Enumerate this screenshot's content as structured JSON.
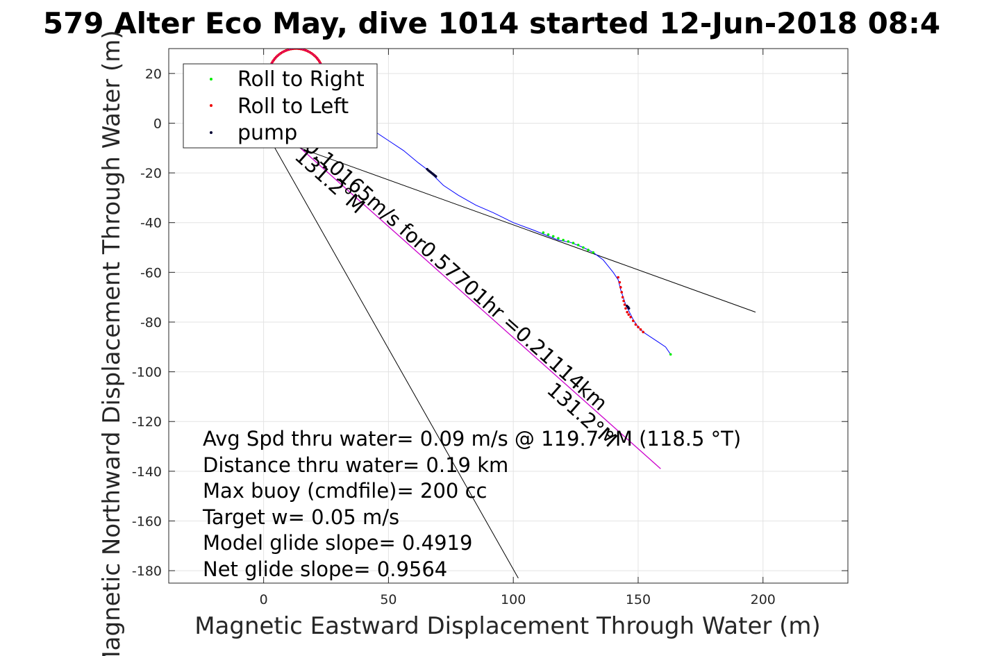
{
  "chart_data": {
    "type": "line",
    "title": "579 Alter Eco May, dive 1014 started 12-Jun-2018 08:4",
    "xlabel": "Magnetic Eastward Displacement Through Water (m)",
    "ylabel": "Magnetic Northward Displacement Through Water (m)",
    "xlim": [
      -38,
      234
    ],
    "ylim": [
      -185,
      30
    ],
    "xticks": [
      0,
      50,
      100,
      150,
      200
    ],
    "yticks": [
      20,
      0,
      -20,
      -40,
      -60,
      -80,
      -100,
      -120,
      -140,
      -160,
      -180
    ],
    "grid": true,
    "legend_position": "top-left",
    "legend": [
      "Roll to Right",
      "Roll to Left",
      "pump"
    ],
    "colors": {
      "track": "#0000ff",
      "roll_right": "#00ee00",
      "roll_left": "#ee0000",
      "pump": "#000033",
      "current_line": "#cc00cc",
      "reference_lines": "#000000"
    },
    "series": [
      {
        "role": "track",
        "x": [
          3,
          10,
          18,
          25,
          32,
          38,
          44,
          50,
          56,
          62,
          66,
          68,
          72,
          78,
          85,
          92,
          100,
          108,
          113,
          118,
          123,
          128,
          132,
          136,
          140,
          142,
          143,
          144,
          145,
          146,
          147,
          148,
          150,
          152,
          155,
          158,
          161,
          163
        ],
        "y": [
          15,
          12,
          10,
          7,
          4,
          1,
          -3,
          -7,
          -11,
          -16,
          -19,
          -21,
          -25,
          -29,
          -33,
          -36,
          -40,
          -43,
          -45,
          -47,
          -48,
          -50,
          -52,
          -55,
          -60,
          -63,
          -67,
          -70,
          -73,
          -75,
          -77,
          -79,
          -82,
          -84,
          -86,
          -88,
          -90,
          -93
        ]
      },
      {
        "name": "Roll to Right",
        "x": [
          112,
          114,
          116,
          118,
          120,
          122,
          124,
          126,
          128,
          130,
          132,
          163
        ],
        "y": [
          -44,
          -44.8,
          -45.5,
          -46.3,
          -47,
          -47.6,
          -48.2,
          -49,
          -50,
          -51,
          -52,
          -93
        ]
      },
      {
        "name": "Roll to Left",
        "arc_center": [
          13,
          19
        ],
        "arc_radius": 11,
        "arc_span_deg": [
          20,
          160
        ],
        "x": [
          142,
          142.6,
          143,
          143.4,
          143.8,
          144.2,
          144.6,
          145,
          145.6,
          146.2,
          147,
          148,
          149,
          150,
          151,
          152
        ],
        "y": [
          -62,
          -64,
          -66,
          -68,
          -70,
          -71.5,
          -73,
          -74.5,
          -76,
          -77,
          -78,
          -79.5,
          -81,
          -82,
          -83,
          -84
        ]
      },
      {
        "name": "pump",
        "x": [
          65.5,
          66,
          66.5,
          67,
          67.5,
          68,
          68.5,
          69,
          145.5,
          146,
          146.3
        ],
        "y": [
          -18.5,
          -19,
          -19.4,
          -19.8,
          -20.2,
          -20.6,
          -21,
          -21.4,
          -73.5,
          -74,
          -74.5
        ]
      }
    ],
    "reference_lines": [
      {
        "role": "current",
        "from": [
          8,
          -4
        ],
        "to": [
          159,
          -139
        ]
      },
      {
        "role": "heading-a",
        "from": [
          -2,
          -4
        ],
        "to": [
          197,
          -76
        ]
      },
      {
        "role": "heading-b",
        "from": [
          0,
          -2
        ],
        "to": [
          102,
          -183
        ]
      }
    ],
    "annotations": [
      {
        "text": "0.10165m/s for0.57701hr =0.21114km",
        "at": [
          16,
          -10
        ]
      },
      {
        "text": "131.2°M",
        "at": [
          12,
          -14
        ]
      },
      {
        "text": "131.2°M",
        "at": [
          113,
          -108
        ]
      }
    ],
    "stats": [
      "Avg Spd thru water=  0.09 m/s @ 119.7 °M (118.5 °T)",
      "Distance thru water=  0.19 km",
      "Max buoy (cmdfile)= 200 cc",
      "Target w= 0.05 m/s",
      "Model glide slope= 0.4919",
      "Net glide slope= 0.9564"
    ]
  }
}
